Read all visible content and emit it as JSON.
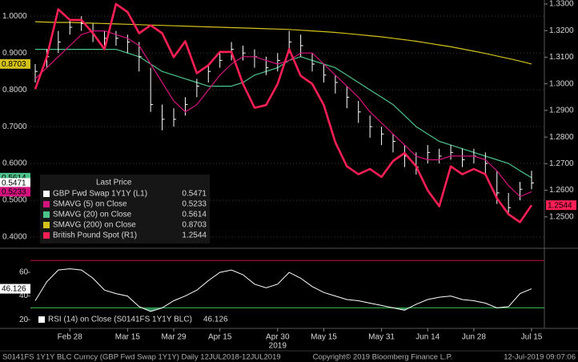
{
  "chart_data": [
    {
      "type": "line",
      "categories": [
        null,
        null,
        null,
        "Feb 28",
        null,
        null,
        null,
        null,
        "Mar 15",
        null,
        null,
        null,
        "Mar 29",
        null,
        null,
        null,
        "Apr 15",
        null,
        null,
        null,
        null,
        "Apr 30",
        null,
        null,
        null,
        "May 15",
        null,
        null,
        null,
        null,
        "May 31",
        null,
        null,
        null,
        "Jun 14",
        null,
        null,
        null,
        "Jun 28",
        null,
        null,
        null,
        null,
        "Jul 15"
      ],
      "year_label": "2019",
      "legend_title": "Last Price",
      "grid": true,
      "ylim": [
        0.374,
        1.044
      ],
      "yticks": [
        {
          "value": 0.4,
          "label": "0.4000"
        },
        {
          "value": 0.5,
          "label": "0.5000"
        },
        {
          "value": 0.6,
          "label": "0.6000"
        },
        {
          "value": 0.7,
          "label": "0.7000"
        },
        {
          "value": 0.8,
          "label": "0.8000"
        },
        {
          "value": 0.9,
          "label": "0.9000"
        },
        {
          "value": 1.0,
          "label": "1.0000"
        }
      ],
      "y2lim": [
        1.2388,
        1.3315
      ],
      "y2ticks": [
        {
          "value": 1.25,
          "label": "1.2500"
        },
        {
          "value": 1.26,
          "label": "1.2600"
        },
        {
          "value": 1.27,
          "label": "1.2700"
        },
        {
          "value": 1.28,
          "label": "1.2800"
        },
        {
          "value": 1.29,
          "label": "1.2900"
        },
        {
          "value": 1.3,
          "label": "1.3000"
        },
        {
          "value": 1.31,
          "label": "1.3100"
        },
        {
          "value": 1.32,
          "label": "1.3200"
        },
        {
          "value": 1.33,
          "label": "1.3300"
        }
      ],
      "series": [
        {
          "name": "SMAVG (200) on Close",
          "color": "#d4c21a",
          "last_label": "0.8703",
          "values": [
            0.985,
            0.984,
            0.983,
            0.983,
            0.982,
            0.981,
            0.98,
            0.979,
            0.978,
            0.977,
            0.976,
            0.975,
            0.974,
            0.973,
            0.972,
            0.971,
            0.97,
            0.969,
            0.968,
            0.967,
            0.966,
            0.965,
            0.964,
            0.962,
            0.96,
            0.958,
            0.956,
            0.953,
            0.95,
            0.947,
            0.944,
            0.94,
            0.936,
            0.932,
            0.927,
            0.922,
            0.917,
            0.911,
            0.905,
            0.899,
            0.892,
            0.885,
            0.878,
            0.8703
          ]
        },
        {
          "name": "SMAVG (20) on Close",
          "color": "#4cc38a",
          "last_label": "0.5614",
          "values": [
            0.91,
            0.91,
            0.91,
            0.91,
            0.91,
            0.91,
            0.91,
            0.91,
            0.9,
            0.89,
            0.87,
            0.85,
            0.84,
            0.83,
            0.82,
            0.81,
            0.81,
            0.81,
            0.82,
            0.84,
            0.85,
            0.86,
            0.88,
            0.89,
            0.88,
            0.87,
            0.86,
            0.84,
            0.82,
            0.8,
            0.78,
            0.76,
            0.73,
            0.7,
            0.68,
            0.66,
            0.65,
            0.64,
            0.63,
            0.62,
            0.61,
            0.6,
            0.58,
            0.5614
          ]
        },
        {
          "name": "GBP Fwd Swap 1Y1Y (L1)",
          "color": "#ffffff",
          "style": "ohlc",
          "last_label": "0.5471",
          "values": [
            0.85,
            0.89,
            0.93,
            0.97,
            0.98,
            0.95,
            0.94,
            0.94,
            0.93,
            0.89,
            0.76,
            0.72,
            0.72,
            0.76,
            0.81,
            0.85,
            0.88,
            0.91,
            0.9,
            0.89,
            0.86,
            0.88,
            0.93,
            0.92,
            0.87,
            0.84,
            0.82,
            0.78,
            0.74,
            0.7,
            0.68,
            0.66,
            0.62,
            0.59,
            0.63,
            0.62,
            0.63,
            0.61,
            0.62,
            0.6,
            0.52,
            0.48,
            0.53,
            0.5471
          ],
          "high": [
            0.87,
            0.91,
            0.96,
            0.99,
            1.0,
            0.98,
            0.96,
            0.96,
            0.95,
            0.93,
            0.86,
            0.76,
            0.75,
            0.78,
            0.83,
            0.87,
            0.9,
            0.93,
            0.92,
            0.91,
            0.89,
            0.9,
            0.96,
            0.95,
            0.9,
            0.87,
            0.84,
            0.81,
            0.77,
            0.73,
            0.7,
            0.68,
            0.65,
            0.63,
            0.65,
            0.64,
            0.65,
            0.64,
            0.64,
            0.63,
            0.58,
            0.52,
            0.55,
            0.58
          ],
          "low": [
            0.82,
            0.86,
            0.9,
            0.95,
            0.96,
            0.93,
            0.92,
            0.92,
            0.9,
            0.85,
            0.74,
            0.69,
            0.7,
            0.73,
            0.78,
            0.82,
            0.86,
            0.88,
            0.88,
            0.86,
            0.84,
            0.85,
            0.9,
            0.89,
            0.85,
            0.82,
            0.79,
            0.75,
            0.71,
            0.67,
            0.65,
            0.63,
            0.59,
            0.57,
            0.6,
            0.6,
            0.61,
            0.59,
            0.6,
            0.57,
            0.49,
            0.46,
            0.5,
            0.53
          ]
        },
        {
          "name": "SMAVG (5) on Close",
          "color": "#d4127e",
          "last_label": "0.5233",
          "values": [
            0.83,
            0.86,
            0.89,
            0.92,
            0.95,
            0.96,
            0.96,
            0.95,
            0.94,
            0.92,
            0.87,
            0.82,
            0.77,
            0.74,
            0.76,
            0.8,
            0.84,
            0.87,
            0.89,
            0.89,
            0.88,
            0.87,
            0.88,
            0.9,
            0.9,
            0.87,
            0.84,
            0.81,
            0.78,
            0.74,
            0.71,
            0.68,
            0.65,
            0.62,
            0.61,
            0.61,
            0.62,
            0.62,
            0.62,
            0.61,
            0.58,
            0.54,
            0.51,
            0.5233
          ]
        },
        {
          "name": "British Pound Spot (R1)",
          "color": "#ff1f55",
          "axis": "y2",
          "width": 2.6,
          "last_label": "1.2544",
          "values": [
            1.298,
            1.31,
            1.328,
            1.324,
            1.324,
            1.319,
            1.313,
            1.33,
            1.327,
            1.319,
            1.322,
            1.319,
            1.31,
            1.316,
            1.304,
            1.307,
            1.312,
            1.312,
            1.3,
            1.291,
            1.292,
            1.3,
            1.313,
            1.303,
            1.3,
            1.292,
            1.278,
            1.269,
            1.266,
            1.268,
            1.265,
            1.271,
            1.274,
            1.269,
            1.26,
            1.254,
            1.269,
            1.266,
            1.268,
            1.266,
            1.257,
            1.251,
            1.248,
            1.2544
          ]
        }
      ],
      "legend_order": [
        2,
        3,
        1,
        0,
        4
      ]
    },
    {
      "type": "line",
      "ylim": [
        14,
        79
      ],
      "yticks": [
        20,
        40,
        60
      ],
      "upper": 70,
      "upper_color": "#b0103e",
      "lower": 30,
      "lower_color": "#2fa043",
      "fill_color": "#2e8b57",
      "series": [
        {
          "name": "RSI (14) on Close (S0141FS 1Y1Y BLC)",
          "color": "#ffffff",
          "last_label": "46.126",
          "values": [
            36,
            52,
            62,
            63,
            62,
            55,
            45,
            42,
            40,
            31,
            27,
            30,
            36,
            40,
            45,
            53,
            60,
            62,
            58,
            50,
            47,
            50,
            60,
            55,
            48,
            43,
            40,
            37,
            36,
            34,
            32,
            30,
            28,
            33,
            37,
            39,
            40,
            37,
            36,
            34,
            30,
            31,
            42,
            46.126
          ]
        }
      ]
    }
  ],
  "footer": {
    "left": "S0141FS 1Y1Y BLC Curncy (GBP Fwd Swap 1Y1Y)  Daily 12JUL2018-12JUL2019",
    "center": "Copyright© 2019 Bloomberg Finance L.P.",
    "right": "12-Jul-2019 09:07:06"
  }
}
